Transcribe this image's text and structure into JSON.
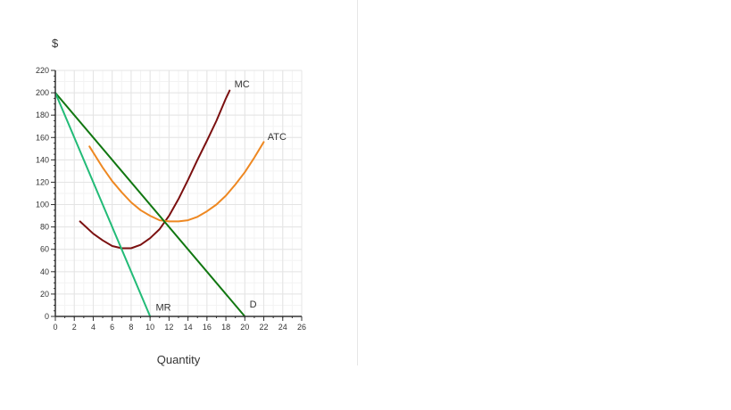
{
  "chart_data": {
    "type": "line",
    "xlabel": "Quantity",
    "ylabel": "$",
    "xlim": [
      0,
      26
    ],
    "ylim": [
      0,
      220
    ],
    "x_ticks": [
      0,
      2,
      4,
      6,
      8,
      10,
      12,
      14,
      16,
      18,
      20,
      22,
      24,
      26
    ],
    "y_ticks": [
      0,
      20,
      40,
      60,
      80,
      100,
      120,
      140,
      160,
      180,
      200,
      220
    ],
    "grid": true,
    "series": [
      {
        "name": "MC",
        "color": "#7b1010",
        "x": [
          2.6,
          4,
          5,
          6,
          7,
          8,
          9,
          10,
          11,
          12,
          13,
          14,
          15,
          16,
          17,
          18,
          18.4
        ],
        "y": [
          85,
          74,
          68,
          63,
          61,
          61,
          64,
          70,
          78,
          90,
          105,
          122,
          140,
          157,
          175,
          195,
          202
        ]
      },
      {
        "name": "ATC",
        "color": "#ee8822",
        "x": [
          3.6,
          5,
          6,
          7,
          8,
          9,
          10,
          11,
          12,
          13,
          14,
          15,
          16,
          17,
          18,
          19,
          20,
          21,
          22
        ],
        "y": [
          152,
          133,
          121,
          111,
          102,
          95,
          90,
          86,
          85,
          85,
          86,
          89,
          94,
          100,
          108,
          118,
          129,
          142,
          156
        ]
      },
      {
        "name": "D",
        "color": "#117711",
        "x": [
          0,
          20
        ],
        "y": [
          200,
          0
        ]
      },
      {
        "name": "MR",
        "color": "#22bb77",
        "x": [
          0,
          10
        ],
        "y": [
          200,
          0
        ]
      }
    ],
    "labels": [
      {
        "text": "MC",
        "x": 18.9,
        "y": 205
      },
      {
        "text": "ATC",
        "x": 22.4,
        "y": 158
      },
      {
        "text": "D",
        "x": 20.5,
        "y": 8
      },
      {
        "text": "MR",
        "x": 10.6,
        "y": 5
      }
    ]
  }
}
